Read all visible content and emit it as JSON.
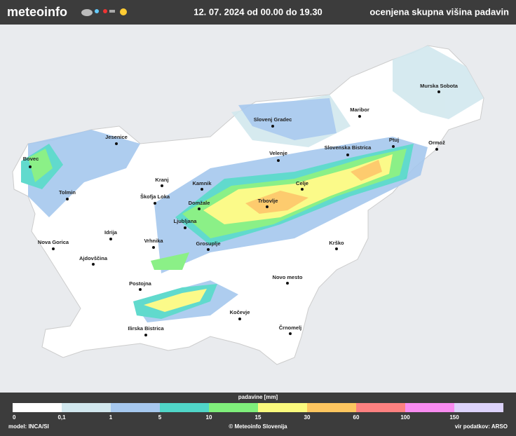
{
  "header": {
    "brand": "meteoinfo",
    "date": "12. 07. 2024 od 00.00 do 19.30",
    "title": "ocenjena skupna višina padavin"
  },
  "map": {
    "cities": [
      "Murska Sobota",
      "Maribor",
      "Slovenj Gradec",
      "Jesenice",
      "Ptuj",
      "Ormož",
      "Slovenska Bistrica",
      "Velenje",
      "Bovec",
      "Kranj",
      "Kamnik",
      "Celje",
      "Tolmin",
      "Škofja Loka",
      "Trbovlje",
      "Domžale",
      "Ljubljana",
      "Idrija",
      "Vrhnika",
      "Nova Gorica",
      "Grosuplje",
      "Krško",
      "Ajdovščina",
      "Novo mesto",
      "Postojna",
      "Kočevje",
      "Črnomelj",
      "Ilirska Bistrica"
    ]
  },
  "legend": {
    "title": "padavine [mm]",
    "colors": [
      "#ffffff",
      "#d2e8ee",
      "#a6c8ee",
      "#50d6c8",
      "#7fef7b",
      "#fbfa7d",
      "#fdc65f",
      "#fd8180",
      "#f88cf0",
      "#dcd3fa"
    ],
    "ticks": [
      "0",
      "0,1",
      "1",
      "5",
      "10",
      "15",
      "30",
      "60",
      "100",
      "150"
    ]
  },
  "footer": {
    "model": "model: INCA/SI",
    "copyright": "© Meteoinfo Slovenija",
    "source": "vir podatkov: ARSO"
  }
}
